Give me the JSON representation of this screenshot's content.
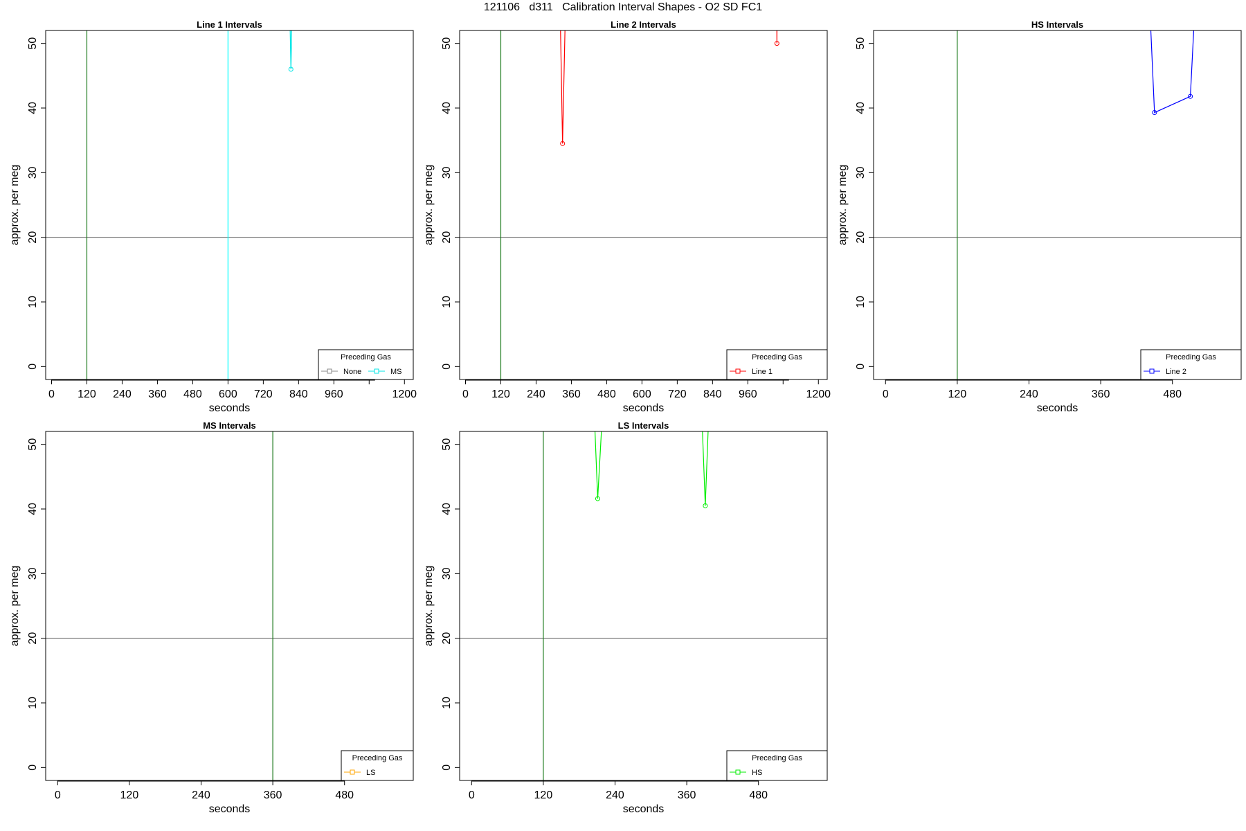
{
  "main_title": "121106   d311   Calibration Interval Shapes - O2 SD FC1",
  "colors": {
    "axis": "#000000",
    "hline": "#555555",
    "vline_green": "#1e7b1e",
    "vline_cyan": "#00ffff"
  },
  "chart_data": [
    {
      "type": "line",
      "title": "Line 1 Intervals",
      "xlabel": "seconds",
      "ylabel": "approx. per meg",
      "xlim": [
        -20,
        1230
      ],
      "ylim": [
        -2,
        52
      ],
      "xticks": [
        0,
        120,
        240,
        360,
        480,
        600,
        720,
        840,
        960,
        1200
      ],
      "yticks": [
        0,
        10,
        20,
        30,
        40,
        50
      ],
      "hlines": [
        {
          "y": 20,
          "color": "#555555"
        }
      ],
      "vlines": [
        {
          "x": 120,
          "color": "#1e7b1e"
        },
        {
          "x": 600,
          "color": "#00ffff"
        }
      ],
      "series": [
        {
          "color": "#00e5e5",
          "line_x": [
            808,
            814,
            820
          ],
          "line_y": [
            60,
            46,
            60
          ],
          "points": [
            [
              814,
              46
            ]
          ]
        }
      ],
      "legend": {
        "title": "Preceding Gas",
        "position": "bottom-right",
        "entries": [
          {
            "label": "None",
            "color": "#888888"
          },
          {
            "label": "MS",
            "color": "#00e5e5"
          }
        ]
      }
    },
    {
      "type": "line",
      "title": "Line 2 Intervals",
      "xlabel": "seconds",
      "ylabel": "approx. per meg",
      "xlim": [
        -20,
        1230
      ],
      "ylim": [
        -2,
        52
      ],
      "xticks": [
        0,
        120,
        240,
        360,
        480,
        600,
        720,
        840,
        960,
        1200
      ],
      "yticks": [
        0,
        10,
        20,
        30,
        40,
        50
      ],
      "hlines": [
        {
          "y": 20,
          "color": "#555555"
        }
      ],
      "vlines": [
        {
          "x": 120,
          "color": "#1e7b1e"
        }
      ],
      "series": [
        {
          "color": "#ff0000",
          "line_x": [
            320,
            330,
            342
          ],
          "line_y": [
            60,
            34.5,
            60
          ],
          "points": [
            [
              330,
              34.5
            ]
          ]
        },
        {
          "color": "#ff0000",
          "line_x": [
            1058,
            1059,
            1060
          ],
          "line_y": [
            60,
            50,
            60
          ],
          "points": [
            [
              1059,
              50
            ]
          ]
        }
      ],
      "legend": {
        "title": "Preceding Gas",
        "position": "bottom-right",
        "entries": [
          {
            "label": "Line 1",
            "color": "#ff0000"
          }
        ]
      }
    },
    {
      "type": "line",
      "title": "HS Intervals",
      "xlabel": "seconds",
      "ylabel": "approx. per meg",
      "xlim": [
        -20,
        595
      ],
      "ylim": [
        -2,
        52
      ],
      "xticks": [
        0,
        120,
        240,
        360,
        480
      ],
      "yticks": [
        0,
        10,
        20,
        30,
        40,
        50
      ],
      "hlines": [
        {
          "y": 20,
          "color": "#555555"
        }
      ],
      "vlines": [
        {
          "x": 120,
          "color": "#1e7b1e"
        }
      ],
      "series": [
        {
          "color": "#0000ff",
          "line_x": [
            440,
            450,
            510,
            520
          ],
          "line_y": [
            60,
            39.3,
            41.8,
            60
          ],
          "points": [
            [
              450,
              39.3
            ],
            [
              510,
              41.8
            ]
          ]
        }
      ],
      "legend": {
        "title": "Preceding Gas",
        "position": "bottom-right",
        "entries": [
          {
            "label": "Line 2",
            "color": "#0000ff"
          }
        ]
      }
    },
    {
      "type": "line",
      "title": "MS Intervals",
      "xlabel": "seconds",
      "ylabel": "approx. per meg",
      "xlim": [
        -20,
        595
      ],
      "ylim": [
        -2,
        52
      ],
      "xticks": [
        0,
        120,
        240,
        360,
        480
      ],
      "yticks": [
        0,
        10,
        20,
        30,
        40,
        50
      ],
      "hlines": [
        {
          "y": 20,
          "color": "#555555"
        }
      ],
      "vlines": [
        {
          "x": 360,
          "color": "#1e7b1e"
        }
      ],
      "series": [],
      "legend": {
        "title": "Preceding Gas",
        "position": "bottom-right",
        "entries": [
          {
            "label": "LS",
            "color": "#ffa500"
          }
        ]
      }
    },
    {
      "type": "line",
      "title": "LS Intervals",
      "xlabel": "seconds",
      "ylabel": "approx. per meg",
      "xlim": [
        -20,
        595
      ],
      "ylim": [
        -2,
        52
      ],
      "xticks": [
        0,
        120,
        240,
        360,
        480
      ],
      "yticks": [
        0,
        10,
        20,
        30,
        40,
        50
      ],
      "hlines": [
        {
          "y": 20,
          "color": "#555555"
        }
      ],
      "vlines": [
        {
          "x": 120,
          "color": "#1e7b1e"
        }
      ],
      "series": [
        {
          "color": "#00ee00",
          "line_x": [
            203,
            211,
            222
          ],
          "line_y": [
            60,
            41.6,
            60
          ],
          "points": [
            [
              211,
              41.6
            ]
          ]
        },
        {
          "color": "#00ee00",
          "line_x": [
            383,
            391,
            399
          ],
          "line_y": [
            60,
            40.5,
            60
          ],
          "points": [
            [
              391,
              40.5
            ]
          ]
        }
      ],
      "legend": {
        "title": "Preceding Gas",
        "position": "bottom-right",
        "entries": [
          {
            "label": "HS",
            "color": "#00ee00"
          }
        ]
      }
    }
  ]
}
